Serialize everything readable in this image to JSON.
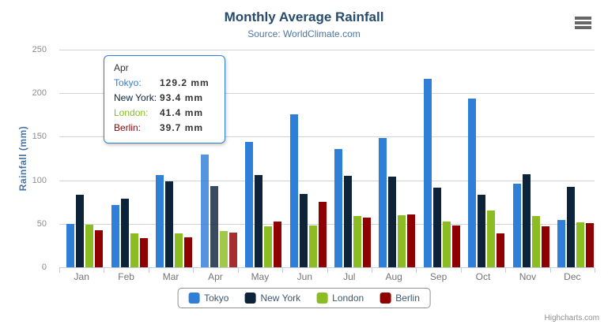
{
  "chart_data": {
    "type": "bar",
    "title": "Monthly Average Rainfall",
    "subtitle": "Source: WorldClimate.com",
    "xlabel": "",
    "ylabel": "Rainfall (mm)",
    "ylim": [
      0,
      250
    ],
    "yticks": [
      0,
      50,
      100,
      150,
      200,
      250
    ],
    "grid": true,
    "legend_position": "bottom-center",
    "hovered_category": "Apr",
    "categories": [
      "Jan",
      "Feb",
      "Mar",
      "Apr",
      "May",
      "Jun",
      "Jul",
      "Aug",
      "Sep",
      "Oct",
      "Nov",
      "Dec"
    ],
    "series": [
      {
        "name": "Tokyo",
        "color": "#2f7ed8",
        "values": [
          49.9,
          71.5,
          106.4,
          129.2,
          144.0,
          176.0,
          135.6,
          148.5,
          216.4,
          194.1,
          95.6,
          54.4
        ]
      },
      {
        "name": "New York",
        "color": "#0d233a",
        "values": [
          83.6,
          78.8,
          98.5,
          93.4,
          106.0,
          84.5,
          105.0,
          104.3,
          91.2,
          83.5,
          106.6,
          92.3
        ]
      },
      {
        "name": "London",
        "color": "#8bbc21",
        "values": [
          48.9,
          38.8,
          39.3,
          41.4,
          47.0,
          48.3,
          59.0,
          59.6,
          52.4,
          65.2,
          59.3,
          51.2
        ]
      },
      {
        "name": "Berlin",
        "color": "#910000",
        "values": [
          42.4,
          33.2,
          34.5,
          39.7,
          52.6,
          75.5,
          57.4,
          60.4,
          47.6,
          39.1,
          46.8,
          51.1
        ]
      }
    ]
  },
  "tooltip": {
    "header": "Apr",
    "border_color": "#2f7ed8",
    "rows": [
      {
        "label": "Tokyo:",
        "value": "129.2 mm",
        "color": "#2f7ed8"
      },
      {
        "label": "New York:",
        "value": "93.4 mm",
        "color": "#0d233a"
      },
      {
        "label": "London:",
        "value": "41.4 mm",
        "color": "#8bbc21"
      },
      {
        "label": "Berlin:",
        "value": "39.7 mm",
        "color": "#910000"
      }
    ]
  },
  "export_button": {
    "icon": "hamburger-icon"
  },
  "credits": {
    "label": "Highcharts.com"
  },
  "colors": {
    "title": "#274b6d",
    "subtitle": "#4d759e",
    "axis_title": "#4572a7",
    "axis_labels": "#8d8d8d",
    "gridline": "#d3d3d3",
    "axis_line": "#c0d0e0",
    "legend_text": "#3e576f",
    "credits_text": "#909090"
  }
}
